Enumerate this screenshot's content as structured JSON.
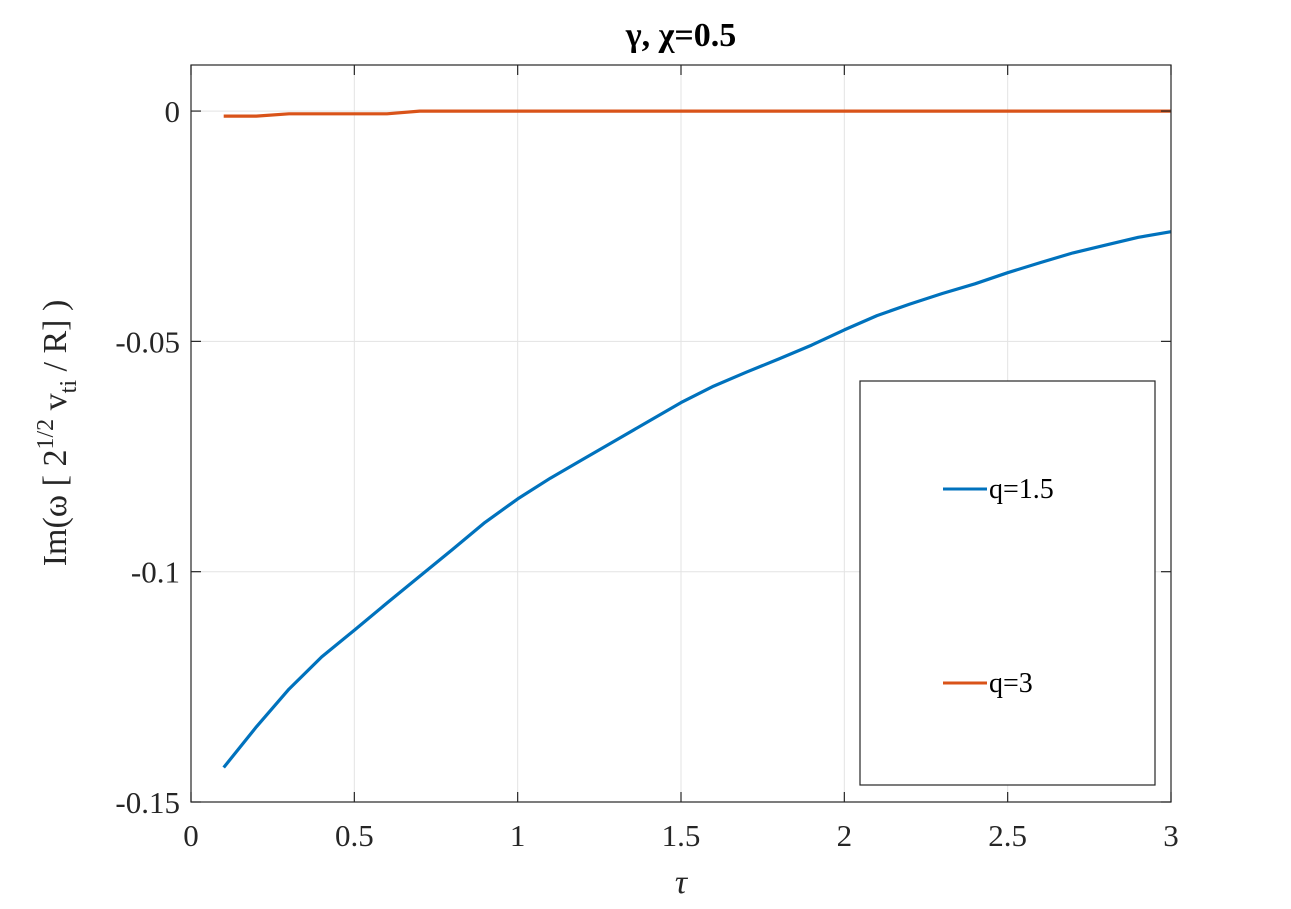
{
  "chart_data": {
    "type": "line",
    "title": "γ, χ=0.5",
    "xlabel": "τ",
    "ylabel_parts": {
      "prefix": "Im(ω [ 2",
      "superscript": "1/2",
      "mid": " v",
      "subscript": "ti",
      "suffix": " / R] )"
    },
    "xlim": [
      0,
      3
    ],
    "ylim": [
      -0.15,
      0.01
    ],
    "xticks": [
      0,
      0.5,
      1,
      1.5,
      2,
      2.5,
      3
    ],
    "xtick_labels": [
      "0",
      "0.5",
      "1",
      "1.5",
      "2",
      "2.5",
      "3"
    ],
    "yticks": [
      -0.15,
      -0.1,
      -0.05,
      0
    ],
    "ytick_labels": [
      "-0.15",
      "-0.1",
      "-0.05",
      "0"
    ],
    "grid": true,
    "legend_position": "right",
    "series": [
      {
        "name": "q=1.5",
        "color": "#0072BD",
        "x": [
          0.1,
          0.2,
          0.3,
          0.4,
          0.5,
          0.6,
          0.7,
          0.8,
          0.9,
          1.0,
          1.1,
          1.2,
          1.3,
          1.4,
          1.5,
          1.6,
          1.7,
          1.8,
          1.9,
          2.0,
          2.1,
          2.2,
          2.3,
          2.4,
          2.5,
          2.6,
          2.7,
          2.8,
          2.9,
          3.0
        ],
        "y": [
          -0.1425,
          -0.1337,
          -0.1255,
          -0.1185,
          -0.1127,
          -0.1068,
          -0.101,
          -0.0952,
          -0.0893,
          -0.0842,
          -0.0797,
          -0.0756,
          -0.0715,
          -0.0674,
          -0.0633,
          -0.0597,
          -0.0567,
          -0.0538,
          -0.0508,
          -0.0475,
          -0.0444,
          -0.0419,
          -0.0396,
          -0.0375,
          -0.0351,
          -0.0329,
          -0.0308,
          -0.0291,
          -0.0274,
          -0.0262
        ]
      },
      {
        "name": "q=3",
        "color": "#D95319",
        "x": [
          0.1,
          0.2,
          0.3,
          0.4,
          0.5,
          0.6,
          0.7,
          0.8,
          0.9,
          1.0,
          1.5,
          2.0,
          2.5,
          3.0
        ],
        "y": [
          -0.0011,
          -0.0011,
          -0.0006,
          -0.0006,
          -0.0006,
          -0.0006,
          0,
          0,
          0,
          0,
          0,
          0,
          0,
          0
        ]
      }
    ]
  }
}
